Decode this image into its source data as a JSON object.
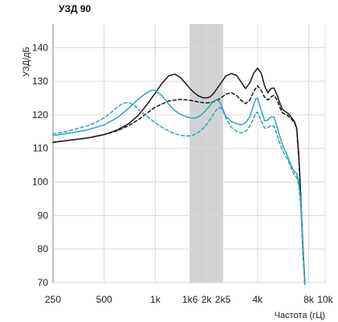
{
  "chart_data": {
    "type": "line",
    "title": "УЗД 90",
    "xlabel": "Частота (гЦ)",
    "ylabel": "УЗД/дБ",
    "x_scale": "log",
    "xlim": [
      250,
      10000
    ],
    "ylim": [
      70,
      147
    ],
    "grid": true,
    "y_ticks": [
      70,
      80,
      90,
      100,
      110,
      120,
      130,
      140
    ],
    "x_ticks": [
      {
        "value": 250,
        "label": "250"
      },
      {
        "value": 500,
        "label": "500"
      },
      {
        "value": 1000,
        "label": "1k"
      },
      {
        "value": 1600,
        "label": "1k6"
      },
      {
        "value": 2000,
        "label": "2k"
      },
      {
        "value": 2500,
        "label": "2k5"
      },
      {
        "value": 4000,
        "label": "4k"
      },
      {
        "value": 8000,
        "label": "8k"
      },
      {
        "value": 10000,
        "label": "10k"
      }
    ],
    "highlight_band": {
      "x": [
        1600,
        2500
      ],
      "color": "#d1d2d4"
    },
    "series": [
      {
        "color": "#1a1a1a",
        "dash": "solid",
        "x": [
          250,
          300,
          400,
          500,
          600,
          700,
          800,
          900,
          1000,
          1100,
          1200,
          1300,
          1400,
          1500,
          1600,
          1700,
          1800,
          1900,
          2000,
          2100,
          2200,
          2400,
          2600,
          2800,
          3000,
          3200,
          3400,
          3600,
          3800,
          4000,
          4200,
          4400,
          4600,
          4800,
          5000,
          5200,
          5400,
          5600,
          6000,
          6200,
          6400,
          6600,
          6800,
          7000,
          7200,
          7400,
          7600
        ],
        "y": [
          111.8,
          112.3,
          113.1,
          114.1,
          115.5,
          117.4,
          120.0,
          123.2,
          126.5,
          129.5,
          131.6,
          132.1,
          131.2,
          129.5,
          127.8,
          126.5,
          125.6,
          125.1,
          125.0,
          125.3,
          126.3,
          129.0,
          131.5,
          132.3,
          131.8,
          129.8,
          127.8,
          129.5,
          132.4,
          133.9,
          132.4,
          128.6,
          126.5,
          127.8,
          128.0,
          126.0,
          123.6,
          121.6,
          120.5,
          119.8,
          118.8,
          118.0,
          116.0,
          108.0,
          95.0,
          80.0,
          69.5
        ]
      },
      {
        "color": "#1a1a1a",
        "dash": "dashed",
        "x": [
          250,
          300,
          400,
          500,
          600,
          700,
          800,
          900,
          1000,
          1200,
          1400,
          1600,
          1800,
          2000,
          2200,
          2400,
          2600,
          2800,
          3000,
          3200,
          3400,
          3600,
          3800,
          4000,
          4200,
          4400,
          4600,
          4800,
          5000,
          5200,
          5400,
          5600,
          6000,
          6200,
          6400,
          6600,
          6800,
          7000,
          7200,
          7400,
          7600
        ],
        "y": [
          111.8,
          112.3,
          113.1,
          114.1,
          115.3,
          116.8,
          118.6,
          120.6,
          122.3,
          124.1,
          124.6,
          124.3,
          123.8,
          123.5,
          123.8,
          124.8,
          126.1,
          126.6,
          125.8,
          124.3,
          123.3,
          124.3,
          127.0,
          128.6,
          127.3,
          125.2,
          124.4,
          125.3,
          125.8,
          124.5,
          122.3,
          120.6,
          119.8,
          119.2,
          118.4,
          117.6,
          115.5,
          107.0,
          94.0,
          79.5,
          69.5
        ]
      },
      {
        "color": "#26a9b8",
        "dash": "solid",
        "x": [
          250,
          300,
          400,
          500,
          600,
          700,
          800,
          900,
          950,
          1000,
          1100,
          1200,
          1300,
          1400,
          1500,
          1600,
          1700,
          1800,
          1900,
          2000,
          2100,
          2200,
          2300,
          2400,
          2500,
          2600,
          2800,
          3000,
          3200,
          3400,
          3600,
          3800,
          3900,
          4000,
          4200,
          4400,
          4600,
          4800,
          5000,
          5200,
          5400,
          5600,
          5800,
          6000,
          6200,
          6400,
          6600,
          6800,
          7000,
          7200,
          7400,
          7600
        ],
        "y": [
          113.8,
          114.4,
          115.5,
          117.0,
          119.2,
          122.0,
          124.8,
          126.7,
          127.3,
          127.3,
          125.6,
          123.1,
          121.3,
          120.2,
          119.5,
          119.1,
          119.0,
          119.4,
          120.3,
          121.5,
          122.8,
          124.0,
          124.6,
          123.8,
          121.6,
          119.6,
          118.0,
          117.4,
          117.0,
          117.6,
          119.4,
          123.0,
          124.8,
          124.9,
          121.4,
          118.2,
          118.4,
          119.4,
          119.3,
          116.5,
          113.6,
          111.2,
          109.4,
          107.8,
          105.8,
          104.3,
          103.0,
          102.5,
          100.0,
          94.0,
          82.0,
          69.5
        ]
      },
      {
        "color": "#26a9b8",
        "dash": "dashed",
        "x": [
          250,
          300,
          400,
          450,
          500,
          550,
          600,
          650,
          700,
          750,
          800,
          900,
          1000,
          1100,
          1200,
          1300,
          1400,
          1500,
          1600,
          1700,
          1800,
          1900,
          2000,
          2100,
          2200,
          2300,
          2400,
          2500,
          2600,
          2800,
          3000,
          3200,
          3400,
          3600,
          3800,
          3900,
          4000,
          4200,
          4400,
          4600,
          4800,
          5000,
          5200,
          5400,
          5600,
          5800,
          6000,
          6200,
          6400,
          6600,
          6800,
          7000,
          7200,
          7400,
          7600
        ],
        "y": [
          114.3,
          115.0,
          116.7,
          117.8,
          119.1,
          120.7,
          122.4,
          123.5,
          123.6,
          122.8,
          121.5,
          119.4,
          117.6,
          116.2,
          115.2,
          114.4,
          113.9,
          113.7,
          113.7,
          114.1,
          114.8,
          115.8,
          117.0,
          118.6,
          120.2,
          121.6,
          122.2,
          121.3,
          119.2,
          116.3,
          115.1,
          114.6,
          115.0,
          116.6,
          119.0,
          120.5,
          120.8,
          118.2,
          116.0,
          116.1,
          116.8,
          116.6,
          114.2,
          111.6,
          109.5,
          108.0,
          106.8,
          105.0,
          103.3,
          102.0,
          101.4,
          99.0,
          92.0,
          80.0,
          69.5
        ]
      }
    ]
  }
}
